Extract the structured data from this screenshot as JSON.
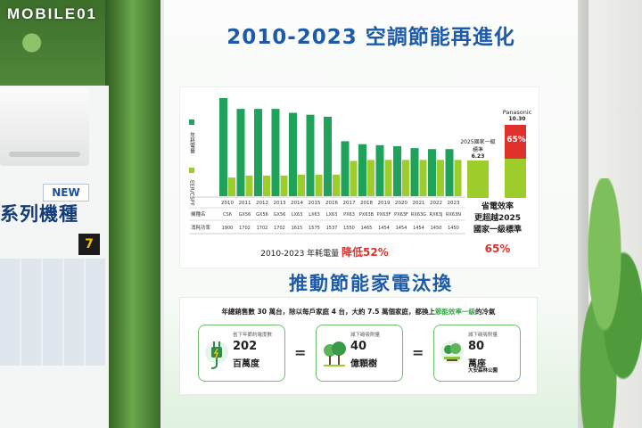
{
  "watermark": "MOBILE01",
  "left_panel": {
    "badge": "NEW",
    "series_title": "系列機種",
    "energy_grade": "7"
  },
  "title": "2010-2023 空調節能再進化",
  "chart": {
    "legend_top": "年耗電量",
    "legend_bottom": "EER/CSPF",
    "table_model_label": "機種名",
    "table_power_label": "消耗功率",
    "years": [
      "2010",
      "2011",
      "2012",
      "2013",
      "2014",
      "2015",
      "2016",
      "2017",
      "2018",
      "2019",
      "2020",
      "2021",
      "2022",
      "2023"
    ],
    "models": [
      "CS6",
      "GX56",
      "GX56",
      "GX56",
      "LX63",
      "LX63",
      "LX63",
      "PX63",
      "PX63B",
      "PX63F",
      "PX63F",
      "RX63G",
      "RX63J",
      "RX63N"
    ],
    "power": [
      "1900",
      "1702",
      "1702",
      "1702",
      "1615",
      "1575",
      "1537",
      "1550",
      "1465",
      "1454",
      "1454",
      "1454",
      "1450",
      "1450"
    ],
    "annual_kwh_relative": [
      100,
      89,
      89,
      89,
      85,
      83,
      81,
      56,
      53,
      52,
      51,
      49,
      48,
      48
    ],
    "eer_relative": [
      19,
      21,
      21,
      21,
      22,
      22,
      22,
      36,
      37,
      37,
      37,
      37,
      37,
      37
    ],
    "colors": {
      "dark_green": "#1fa35a",
      "light_green": "#9ccd2a",
      "red": "#e0302b"
    }
  },
  "summary": {
    "prefix": "2010-2023 年耗電量",
    "highlight": "降低52%"
  },
  "inset": {
    "left_note": "2025國家一級標準",
    "left_value": "6.23",
    "right_brand": "Panasonic",
    "right_value": "10.30",
    "arrow_pct": "65%",
    "caption_lines": [
      "省電效率",
      "更超越2025",
      "國家一級標準"
    ],
    "pct": "65%"
  },
  "slogan": "推動節能家電汰換",
  "bottom": {
    "text_prefix": "年總銷售數 30 萬台，除以每戶家庭 4 台，大約 7.5 萬個家庭，都換上",
    "text_highlight": "節能效率一級",
    "text_suffix": "的冷氣",
    "boxes": [
      {
        "caption": "省下年節約電度數",
        "number": "202",
        "unit": "百萬度",
        "sub": "",
        "icon": "electric-plug-icon"
      },
      {
        "caption": "減下碳吸附量",
        "number": "40",
        "unit": "億顆樹",
        "sub": "",
        "icon": "trees-icon"
      },
      {
        "caption": "減下碳吸附量",
        "number": "80",
        "unit": "萬座",
        "sub": "大安森林公園",
        "icon": "park-icon"
      }
    ],
    "equals": "="
  }
}
